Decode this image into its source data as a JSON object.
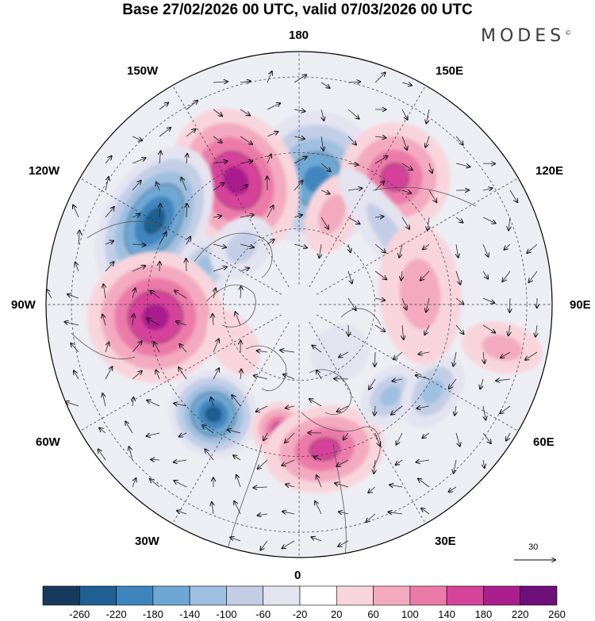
{
  "title": "Base 27/02/2026 00 UTC, valid 07/03/2026 00 UTC",
  "brand": {
    "name": "MODES",
    "mark": "©"
  },
  "meridian_labels": {
    "top": "180",
    "bottom": "0",
    "left": "90W",
    "right": "90E",
    "upper_left_1": "150W",
    "upper_left_2": "120W",
    "upper_right_1": "150E",
    "upper_right_2": "120E",
    "lower_left_1": "60W",
    "lower_left_2": "30W",
    "lower_right_1": "60E",
    "lower_right_2": "30E"
  },
  "wind_reference": "30",
  "colorbar": {
    "labels": [
      "-260",
      "-220",
      "-180",
      "-140",
      "-100",
      "-60",
      "-20",
      "20",
      "60",
      "100",
      "140",
      "180",
      "220",
      "260"
    ],
    "colors": [
      "#173a5c",
      "#1f5f93",
      "#3f85bd",
      "#6ea7d3",
      "#9ebfe0",
      "#c3cee6",
      "#e4e4f1",
      "#ffffff",
      "#f8d5dc",
      "#f3aac0",
      "#ec7aa9",
      "#d6439b",
      "#aa1f8d",
      "#6e0f7a",
      "#4a0a66"
    ]
  },
  "anomalies": [
    {
      "name": "neg-150w-north",
      "lon": 172,
      "r": 0.5,
      "w": 0.26,
      "h": 0.3,
      "v": -200
    },
    {
      "name": "pos-160w",
      "lon": -153,
      "r": 0.55,
      "w": 0.24,
      "h": 0.33,
      "v": 210
    },
    {
      "name": "pos-150e",
      "lon": 143,
      "r": 0.63,
      "w": 0.22,
      "h": 0.24,
      "v": 170
    },
    {
      "name": "pos-150e-tail",
      "lon": 160,
      "r": 0.38,
      "w": 0.1,
      "h": 0.18,
      "v": 90
    },
    {
      "name": "neg-120w",
      "lon": -120,
      "r": 0.66,
      "w": 0.32,
      "h": 0.22,
      "v": -230
    },
    {
      "name": "neg-120w-east",
      "lon": -112,
      "r": 0.4,
      "w": 0.12,
      "h": 0.12,
      "v": -110
    },
    {
      "name": "pos-90w",
      "lon": -85,
      "r": 0.57,
      "w": 0.26,
      "h": 0.3,
      "v": 210
    },
    {
      "name": "neg-50w",
      "lon": -38,
      "r": 0.55,
      "w": 0.18,
      "h": 0.19,
      "v": -230
    },
    {
      "name": "pos-20w",
      "lon": -9,
      "r": 0.5,
      "w": 0.11,
      "h": 0.12,
      "v": 170
    },
    {
      "name": "pos-5e",
      "lon": 10,
      "r": 0.58,
      "w": 0.24,
      "h": 0.19,
      "v": 170
    },
    {
      "name": "neg-45e",
      "lon": 45,
      "r": 0.51,
      "w": 0.14,
      "h": 0.11,
      "v": -130
    },
    {
      "name": "neg-60e",
      "lon": 57,
      "r": 0.63,
      "w": 0.16,
      "h": 0.12,
      "v": -120
    },
    {
      "name": "neg-120e-band",
      "lon": 125,
      "r": 0.45,
      "w": 0.34,
      "h": 0.1,
      "v": -90
    },
    {
      "name": "pos-90e",
      "lon": 95,
      "r": 0.48,
      "w": 0.28,
      "h": 0.18,
      "v": 70
    },
    {
      "name": "pos-75e-east",
      "lon": 78,
      "r": 0.82,
      "w": 0.1,
      "h": 0.18,
      "v": 70
    },
    {
      "name": "neg-110w-inner",
      "lon": -135,
      "r": 0.32,
      "w": 0.14,
      "h": 0.12,
      "v": -60
    },
    {
      "name": "pos-30w-inner",
      "lon": -60,
      "r": 0.3,
      "w": 0.14,
      "h": 0.1,
      "v": 40
    },
    {
      "name": "neg-20e-inner",
      "lon": 40,
      "r": 0.25,
      "w": 0.12,
      "h": 0.12,
      "v": -45
    }
  ]
}
